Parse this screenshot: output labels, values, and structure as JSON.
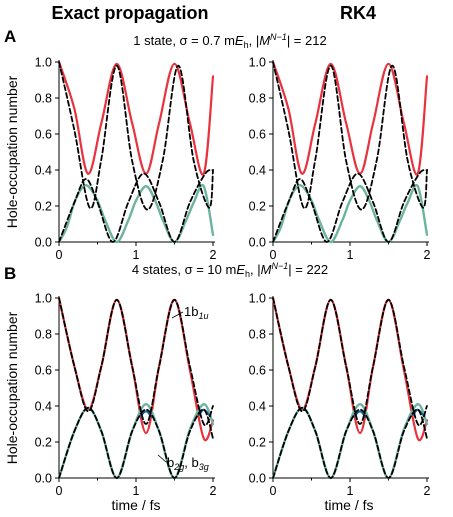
{
  "columns": {
    "left_title": "Exact propagation",
    "right_title": "RK4"
  },
  "rows": {
    "A": {
      "letter": "A",
      "title": {
        "prefix": "1 state, σ = 0.7 m",
        "e": "E",
        "h": "h",
        "mid": ", |",
        "m": "M",
        "sup": "N−1",
        "suffix": "| = 212"
      }
    },
    "B": {
      "letter": "B",
      "title": {
        "prefix": "4 states, σ = 10 m",
        "e": "E",
        "h": "h",
        "mid": ", |",
        "m": "M",
        "sup": "N−1",
        "suffix": "| = 222"
      }
    }
  },
  "axes": {
    "ylabel": "Hole-occupation number",
    "xlabel": "time / fs",
    "xticks": [
      "0",
      "1",
      "2"
    ],
    "yticks": [
      "0.0",
      "0.2",
      "0.4",
      "0.6",
      "0.8",
      "1.0"
    ]
  },
  "annotations": {
    "b1u": {
      "base": "1b",
      "sub": "1u"
    },
    "b2g": {
      "b1": "b",
      "s1": "2g",
      "comma": ", b",
      "s2": "3g"
    }
  },
  "colors": {
    "red": "#e8333f",
    "green": "#6db3a0",
    "dashed": "#000000",
    "blue": "#1f5f9e"
  },
  "chart_data": [
    {
      "panel": "A-exact",
      "type": "line",
      "xlabel": "",
      "ylabel": "Hole-occupation number",
      "xlim": [
        0,
        2
      ],
      "ylim": [
        0,
        1
      ],
      "series": [
        {
          "style": "solid-red",
          "x": [
            0,
            0.2,
            0.375,
            0.55,
            0.75,
            0.95,
            1.13,
            1.3,
            1.5,
            1.7,
            1.88,
            2.0
          ],
          "y": [
            1.0,
            0.74,
            0.38,
            0.66,
            0.99,
            0.66,
            0.38,
            0.66,
            0.99,
            0.66,
            0.38,
            0.92
          ]
        },
        {
          "style": "solid-green",
          "x": [
            0,
            0.1,
            0.2,
            0.3,
            0.38,
            0.5,
            0.6,
            0.75,
            0.9,
            1.0,
            1.13,
            1.25,
            1.35,
            1.5,
            1.65,
            1.75,
            1.88,
            2.0
          ],
          "y": [
            0.0,
            0.08,
            0.22,
            0.3,
            0.31,
            0.23,
            0.12,
            0.0,
            0.12,
            0.23,
            0.31,
            0.23,
            0.12,
            0.0,
            0.12,
            0.22,
            0.31,
            0.04
          ]
        },
        {
          "style": "dashed-1",
          "x": [
            0,
            0.2,
            0.4,
            0.55,
            0.75,
            0.95,
            1.15,
            1.35,
            1.55,
            1.75,
            1.95,
            2.0
          ],
          "y": [
            1.0,
            0.62,
            0.19,
            0.46,
            0.98,
            0.45,
            0.18,
            0.46,
            0.98,
            0.45,
            0.19,
            0.4
          ]
        },
        {
          "style": "dashed-2",
          "x": [
            0,
            0.2,
            0.35,
            0.5,
            0.7,
            0.9,
            1.1,
            1.3,
            1.5,
            1.7,
            1.9,
            2.0
          ],
          "y": [
            0.0,
            0.22,
            0.35,
            0.22,
            0.0,
            0.22,
            0.38,
            0.22,
            0.0,
            0.22,
            0.38,
            0.4
          ]
        }
      ]
    },
    {
      "panel": "A-rk4",
      "type": "line",
      "xlabel": "",
      "ylabel": "",
      "xlim": [
        0,
        2
      ],
      "ylim": [
        0,
        1
      ],
      "series": [
        {
          "style": "solid-red",
          "x": [
            0,
            0.2,
            0.375,
            0.55,
            0.75,
            0.95,
            1.13,
            1.3,
            1.5,
            1.7,
            1.88,
            2.0
          ],
          "y": [
            1.0,
            0.74,
            0.38,
            0.66,
            0.99,
            0.66,
            0.38,
            0.66,
            0.99,
            0.66,
            0.38,
            0.92
          ]
        },
        {
          "style": "solid-green",
          "x": [
            0,
            0.1,
            0.2,
            0.3,
            0.38,
            0.5,
            0.6,
            0.75,
            0.9,
            1.0,
            1.13,
            1.25,
            1.35,
            1.5,
            1.65,
            1.75,
            1.88,
            2.0
          ],
          "y": [
            0.0,
            0.08,
            0.22,
            0.3,
            0.31,
            0.23,
            0.12,
            0.0,
            0.12,
            0.23,
            0.31,
            0.23,
            0.12,
            0.0,
            0.12,
            0.22,
            0.31,
            0.04
          ]
        },
        {
          "style": "dashed-1",
          "x": [
            0,
            0.2,
            0.4,
            0.55,
            0.75,
            0.95,
            1.15,
            1.35,
            1.55,
            1.75,
            1.95,
            2.0
          ],
          "y": [
            1.0,
            0.62,
            0.19,
            0.46,
            0.98,
            0.45,
            0.18,
            0.46,
            0.98,
            0.45,
            0.19,
            0.4
          ]
        },
        {
          "style": "dashed-2",
          "x": [
            0,
            0.2,
            0.35,
            0.5,
            0.7,
            0.9,
            1.1,
            1.3,
            1.5,
            1.7,
            1.9,
            2.0
          ],
          "y": [
            0.0,
            0.22,
            0.35,
            0.22,
            0.0,
            0.22,
            0.38,
            0.22,
            0.0,
            0.22,
            0.38,
            0.4
          ]
        }
      ]
    },
    {
      "panel": "B-exact",
      "type": "line",
      "xlabel": "time / fs",
      "ylabel": "Hole-occupation number",
      "xlim": [
        0,
        2
      ],
      "ylim": [
        0,
        1
      ],
      "series": [
        {
          "style": "solid-red",
          "x": [
            0,
            0.2,
            0.38,
            0.55,
            0.75,
            0.95,
            1.13,
            1.3,
            1.5,
            1.7,
            1.88,
            2.0
          ],
          "y": [
            1.0,
            0.62,
            0.38,
            0.62,
            0.99,
            0.62,
            0.25,
            0.62,
            0.99,
            0.6,
            0.22,
            0.32
          ]
        },
        {
          "style": "solid-green",
          "x": [
            0,
            0.2,
            0.38,
            0.55,
            0.75,
            0.95,
            1.13,
            1.3,
            1.5,
            1.7,
            1.88,
            2.0
          ],
          "y": [
            0.0,
            0.26,
            0.39,
            0.26,
            0.0,
            0.26,
            0.41,
            0.26,
            0.0,
            0.27,
            0.41,
            0.3
          ]
        },
        {
          "style": "solid-blue",
          "x": [
            1.05,
            1.13,
            1.2,
            1.82,
            1.88,
            1.95
          ],
          "y": [
            0.34,
            0.37,
            0.34,
            0.35,
            0.38,
            0.35
          ]
        },
        {
          "style": "dashed-1",
          "x": [
            0,
            0.2,
            0.38,
            0.55,
            0.75,
            0.95,
            1.13,
            1.3,
            1.5,
            1.7,
            1.88,
            2.0
          ],
          "y": [
            1.0,
            0.62,
            0.37,
            0.62,
            0.99,
            0.62,
            0.3,
            0.62,
            0.99,
            0.62,
            0.3,
            0.4
          ]
        },
        {
          "style": "dashed-2",
          "x": [
            0,
            0.2,
            0.38,
            0.55,
            0.75,
            0.95,
            1.13,
            1.3,
            1.5,
            1.7,
            1.88,
            2.0
          ],
          "y": [
            0.0,
            0.26,
            0.39,
            0.26,
            0.0,
            0.26,
            0.38,
            0.26,
            0.0,
            0.26,
            0.38,
            0.22
          ]
        }
      ]
    },
    {
      "panel": "B-rk4",
      "type": "line",
      "xlabel": "time / fs",
      "ylabel": "",
      "xlim": [
        0,
        2
      ],
      "ylim": [
        0,
        1
      ],
      "series": [
        {
          "style": "solid-red",
          "x": [
            0,
            0.2,
            0.38,
            0.55,
            0.75,
            0.95,
            1.13,
            1.3,
            1.5,
            1.7,
            1.88,
            2.0
          ],
          "y": [
            1.0,
            0.62,
            0.38,
            0.62,
            0.99,
            0.62,
            0.25,
            0.62,
            0.99,
            0.6,
            0.22,
            0.32
          ]
        },
        {
          "style": "solid-green",
          "x": [
            0,
            0.2,
            0.38,
            0.55,
            0.75,
            0.95,
            1.13,
            1.3,
            1.5,
            1.7,
            1.88,
            2.0
          ],
          "y": [
            0.0,
            0.26,
            0.39,
            0.26,
            0.0,
            0.26,
            0.41,
            0.26,
            0.0,
            0.27,
            0.41,
            0.3
          ]
        },
        {
          "style": "solid-blue",
          "x": [
            1.05,
            1.13,
            1.2,
            1.82,
            1.88,
            1.95
          ],
          "y": [
            0.34,
            0.37,
            0.34,
            0.35,
            0.38,
            0.35
          ]
        },
        {
          "style": "dashed-1",
          "x": [
            0,
            0.2,
            0.38,
            0.55,
            0.75,
            0.95,
            1.13,
            1.3,
            1.5,
            1.7,
            1.88,
            2.0
          ],
          "y": [
            1.0,
            0.62,
            0.37,
            0.62,
            0.99,
            0.62,
            0.3,
            0.62,
            0.99,
            0.62,
            0.3,
            0.4
          ]
        },
        {
          "style": "dashed-2",
          "x": [
            0,
            0.2,
            0.38,
            0.55,
            0.75,
            0.95,
            1.13,
            1.3,
            1.5,
            1.7,
            1.88,
            2.0
          ],
          "y": [
            0.0,
            0.26,
            0.39,
            0.26,
            0.0,
            0.26,
            0.38,
            0.26,
            0.0,
            0.26,
            0.38,
            0.22
          ]
        }
      ]
    }
  ]
}
